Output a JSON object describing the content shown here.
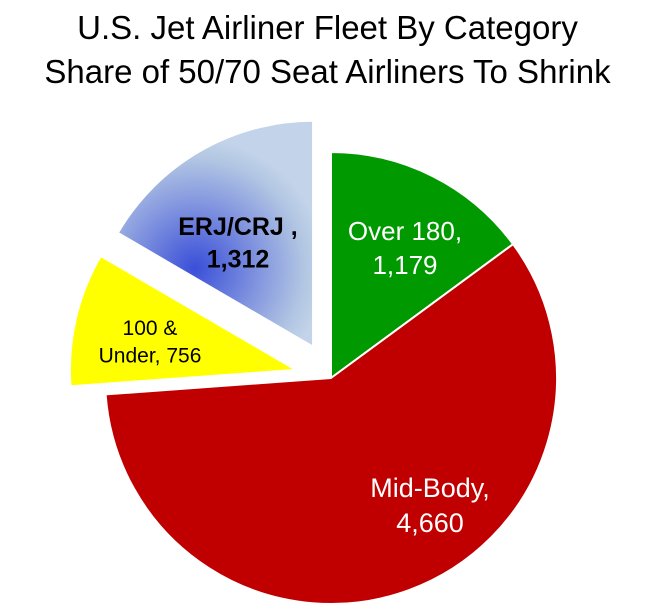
{
  "chart_data": {
    "type": "pie",
    "title": "U.S. Jet Airliner Fleet By Category",
    "subtitle": "Share of 50/70 Seat Airliners To Shrink",
    "start_angle": "12 o'clock",
    "direction": "clockwise",
    "slices": [
      {
        "label_line1": "Over 180,",
        "label_line2": "1,179",
        "category": "Over 180",
        "value": 1179,
        "color": "#009900",
        "exploded": false,
        "label_color": "#ffffff"
      },
      {
        "label_line1": "Mid-Body,",
        "label_line2": "4,660",
        "category": "Mid-Body",
        "value": 4660,
        "color": "#c00000",
        "exploded": false,
        "label_color": "#ffffff"
      },
      {
        "label_line1": "100 &",
        "label_line2": "Under, 756",
        "category": "100 & Under",
        "value": 756,
        "color": "#ffff00",
        "exploded": true,
        "label_color": "#000000"
      },
      {
        "label_line1": "ERJ/CRJ ,",
        "label_line2": "1,312",
        "category": "ERJ/CRJ",
        "value": 1312,
        "color": "#b9cde5",
        "gradient_color": "#3a4fd8",
        "exploded": true,
        "label_color": "#000000"
      }
    ]
  }
}
